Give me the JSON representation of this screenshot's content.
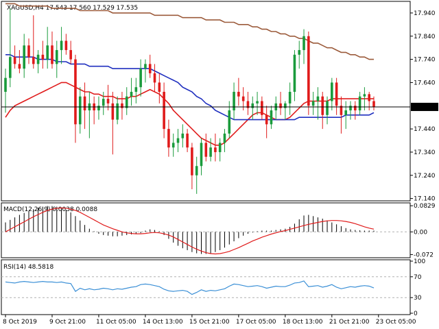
{
  "header": {
    "symbol": "XAGUSD,H4",
    "ohlc": "17.543 17.560 17.529 17.535"
  },
  "price_axis": {
    "ticks": [
      "17.940",
      "17.840",
      "17.740",
      "17.640",
      "17.535",
      "17.440",
      "17.340",
      "17.240",
      "17.140"
    ]
  },
  "current_price": {
    "label": "17.535",
    "value": 17.535
  },
  "macd": {
    "title": "MACD(12,26,9) 0.0038 0.0088",
    "ticks": [
      "0.0829",
      "0.00",
      "-0.072"
    ]
  },
  "rsi": {
    "title": "RSI(14) 48.5818",
    "ticks": [
      "100",
      "70",
      "30",
      "0"
    ]
  },
  "time_axis": {
    "labels": [
      "8 Oct 2019",
      "9 Oct 21:00",
      "11 Oct 05:00",
      "14 Oct 13:00",
      "15 Oct 21:00",
      "17 Oct 05:00",
      "18 Oct 13:00",
      "21 Oct 21:00",
      "23 Oct 05:00"
    ]
  },
  "colors": {
    "bull": "#1a9b3c",
    "bear": "#e01b1b",
    "ma_fast": "#e01b1b",
    "ma_mid": "#1f2fbf",
    "ma_slow": "#9b5a3a",
    "rsi_line": "#3a8fd6",
    "macd_signal": "#e01b1b",
    "macd_hist": "#000000",
    "grid_dash": "#b0b0b0"
  },
  "chart_data": [
    {
      "type": "candlestick",
      "title": "XAGUSD,H4",
      "ylim": [
        17.13,
        17.99
      ],
      "xlabels": [
        "8 Oct 2019",
        "9 Oct 21:00",
        "11 Oct 05:00",
        "14 Oct 13:00",
        "15 Oct 21:00",
        "17 Oct 05:00",
        "18 Oct 13:00",
        "21 Oct 21:00",
        "23 Oct 05:00"
      ],
      "xlabel_index": [
        0,
        10,
        20,
        30,
        40,
        50,
        60,
        70,
        80
      ],
      "candles": [
        [
          17.6,
          17.7,
          17.51,
          17.66
        ],
        [
          17.66,
          17.96,
          17.62,
          17.75
        ],
        [
          17.75,
          17.8,
          17.7,
          17.72
        ],
        [
          17.72,
          17.78,
          17.68,
          17.7
        ],
        [
          17.7,
          17.85,
          17.66,
          17.8
        ],
        [
          17.8,
          17.83,
          17.72,
          17.75
        ],
        [
          17.75,
          17.93,
          17.7,
          17.72
        ],
        [
          17.72,
          17.78,
          17.68,
          17.76
        ],
        [
          17.76,
          17.82,
          17.7,
          17.74
        ],
        [
          17.74,
          17.88,
          17.7,
          17.8
        ],
        [
          17.8,
          17.86,
          17.7,
          17.72
        ],
        [
          17.72,
          17.82,
          17.66,
          17.78
        ],
        [
          17.78,
          17.88,
          17.72,
          17.82
        ],
        [
          17.82,
          17.85,
          17.76,
          17.78
        ],
        [
          17.78,
          17.82,
          17.72,
          17.74
        ],
        [
          17.74,
          17.76,
          17.38,
          17.46
        ],
        [
          17.46,
          17.62,
          17.42,
          17.58
        ],
        [
          17.58,
          17.64,
          17.44,
          17.52
        ],
        [
          17.52,
          17.6,
          17.4,
          17.55
        ],
        [
          17.55,
          17.58,
          17.46,
          17.52
        ],
        [
          17.52,
          17.58,
          17.48,
          17.54
        ],
        [
          17.54,
          17.6,
          17.5,
          17.57
        ],
        [
          17.57,
          17.63,
          17.52,
          17.55
        ],
        [
          17.55,
          17.6,
          17.33,
          17.48
        ],
        [
          17.48,
          17.58,
          17.46,
          17.55
        ],
        [
          17.55,
          17.6,
          17.48,
          17.53
        ],
        [
          17.53,
          17.62,
          17.5,
          17.58
        ],
        [
          17.58,
          17.66,
          17.54,
          17.6
        ],
        [
          17.6,
          17.66,
          17.55,
          17.62
        ],
        [
          17.62,
          17.74,
          17.58,
          17.7
        ],
        [
          17.7,
          17.74,
          17.64,
          17.72
        ],
        [
          17.72,
          17.76,
          17.66,
          17.68
        ],
        [
          17.68,
          17.72,
          17.6,
          17.64
        ],
        [
          17.64,
          17.68,
          17.55,
          17.6
        ],
        [
          17.6,
          17.64,
          17.4,
          17.44
        ],
        [
          17.44,
          17.48,
          17.32,
          17.36
        ],
        [
          17.36,
          17.42,
          17.32,
          17.38
        ],
        [
          17.38,
          17.44,
          17.34,
          17.4
        ],
        [
          17.4,
          17.46,
          17.36,
          17.42
        ],
        [
          17.42,
          17.44,
          17.34,
          17.36
        ],
        [
          17.36,
          17.38,
          17.18,
          17.24
        ],
        [
          17.24,
          17.32,
          17.16,
          17.28
        ],
        [
          17.28,
          17.4,
          17.24,
          17.38
        ],
        [
          17.38,
          17.42,
          17.3,
          17.32
        ],
        [
          17.32,
          17.4,
          17.3,
          17.36
        ],
        [
          17.36,
          17.42,
          17.3,
          17.34
        ],
        [
          17.34,
          17.4,
          17.3,
          17.38
        ],
        [
          17.38,
          17.44,
          17.34,
          17.42
        ],
        [
          17.42,
          17.56,
          17.4,
          17.52
        ],
        [
          17.52,
          17.64,
          17.48,
          17.6
        ],
        [
          17.6,
          17.66,
          17.54,
          17.58
        ],
        [
          17.58,
          17.62,
          17.52,
          17.56
        ],
        [
          17.56,
          17.6,
          17.5,
          17.53
        ],
        [
          17.53,
          17.58,
          17.48,
          17.55
        ],
        [
          17.55,
          17.6,
          17.5,
          17.56
        ],
        [
          17.56,
          17.58,
          17.48,
          17.5
        ],
        [
          17.5,
          17.54,
          17.4,
          17.46
        ],
        [
          17.46,
          17.54,
          17.44,
          17.52
        ],
        [
          17.52,
          17.58,
          17.48,
          17.55
        ],
        [
          17.55,
          17.6,
          17.5,
          17.53
        ],
        [
          17.53,
          17.56,
          17.48,
          17.55
        ],
        [
          17.55,
          17.64,
          17.5,
          17.6
        ],
        [
          17.6,
          17.78,
          17.56,
          17.76
        ],
        [
          17.76,
          17.82,
          17.7,
          17.78
        ],
        [
          17.78,
          17.87,
          17.72,
          17.84
        ],
        [
          17.84,
          17.86,
          17.5,
          17.54
        ],
        [
          17.54,
          17.6,
          17.5,
          17.56
        ],
        [
          17.56,
          17.62,
          17.48,
          17.58
        ],
        [
          17.58,
          17.6,
          17.44,
          17.5
        ],
        [
          17.5,
          17.58,
          17.46,
          17.56
        ],
        [
          17.56,
          17.66,
          17.52,
          17.64
        ],
        [
          17.64,
          17.66,
          17.5,
          17.54
        ],
        [
          17.54,
          17.58,
          17.42,
          17.5
        ],
        [
          17.5,
          17.56,
          17.44,
          17.52
        ],
        [
          17.52,
          17.56,
          17.48,
          17.54
        ],
        [
          17.54,
          17.56,
          17.48,
          17.52
        ],
        [
          17.52,
          17.6,
          17.5,
          17.58
        ],
        [
          17.58,
          17.62,
          17.52,
          17.59
        ],
        [
          17.59,
          17.6,
          17.52,
          17.56
        ],
        [
          17.56,
          17.58,
          17.52,
          17.535
        ]
      ],
      "series": [
        {
          "values": [
            17.49,
            17.52,
            17.54,
            17.55,
            17.56,
            17.57,
            17.58,
            17.59,
            17.6,
            17.61,
            17.62,
            17.63,
            17.64,
            17.64,
            17.63,
            17.62,
            17.61,
            17.6,
            17.6,
            17.59,
            17.59,
            17.58,
            17.58,
            17.58,
            17.57,
            17.57,
            17.57,
            17.58,
            17.58,
            17.59,
            17.6,
            17.61,
            17.6,
            17.59,
            17.57,
            17.55,
            17.52,
            17.5,
            17.48,
            17.46,
            17.44,
            17.42,
            17.4,
            17.39,
            17.38,
            17.37,
            17.37,
            17.38,
            17.4,
            17.42,
            17.44,
            17.46,
            17.48,
            17.5,
            17.51,
            17.51,
            17.5,
            17.49,
            17.48,
            17.48,
            17.48,
            17.49,
            17.51,
            17.53,
            17.55,
            17.56,
            17.56,
            17.56,
            17.56,
            17.56,
            17.57,
            17.57,
            17.57,
            17.57,
            17.57,
            17.57,
            17.57,
            17.57,
            17.57,
            17.57
          ]
        },
        {
          "values": [
            17.76,
            17.76,
            17.75,
            17.75,
            17.75,
            17.75,
            17.75,
            17.74,
            17.74,
            17.74,
            17.74,
            17.73,
            17.73,
            17.73,
            17.72,
            17.72,
            17.72,
            17.72,
            17.71,
            17.71,
            17.71,
            17.71,
            17.71,
            17.7,
            17.7,
            17.7,
            17.7,
            17.7,
            17.7,
            17.7,
            17.7,
            17.7,
            17.69,
            17.68,
            17.67,
            17.66,
            17.65,
            17.64,
            17.62,
            17.61,
            17.6,
            17.58,
            17.57,
            17.55,
            17.54,
            17.52,
            17.51,
            17.5,
            17.49,
            17.48,
            17.48,
            17.48,
            17.48,
            17.48,
            17.48,
            17.48,
            17.48,
            17.48,
            17.48,
            17.48,
            17.48,
            17.48,
            17.48,
            17.49,
            17.49,
            17.49,
            17.49,
            17.49,
            17.49,
            17.49,
            17.49,
            17.49,
            17.49,
            17.5,
            17.5,
            17.5,
            17.5,
            17.5,
            17.5,
            17.51
          ]
        },
        {
          "values": [
            17.98,
            17.98,
            17.98,
            17.97,
            17.97,
            17.97,
            17.97,
            17.97,
            17.97,
            17.97,
            17.96,
            17.96,
            17.96,
            17.96,
            17.96,
            17.96,
            17.95,
            17.95,
            17.95,
            17.95,
            17.95,
            17.95,
            17.95,
            17.94,
            17.94,
            17.94,
            17.94,
            17.94,
            17.94,
            17.94,
            17.94,
            17.94,
            17.93,
            17.93,
            17.93,
            17.93,
            17.93,
            17.93,
            17.92,
            17.92,
            17.92,
            17.92,
            17.92,
            17.91,
            17.91,
            17.91,
            17.91,
            17.9,
            17.9,
            17.9,
            17.89,
            17.89,
            17.89,
            17.88,
            17.88,
            17.87,
            17.87,
            17.86,
            17.86,
            17.85,
            17.85,
            17.84,
            17.84,
            17.83,
            17.83,
            17.82,
            17.81,
            17.81,
            17.8,
            17.79,
            17.79,
            17.78,
            17.77,
            17.77,
            17.76,
            17.76,
            17.75,
            17.75,
            17.74,
            17.74
          ]
        }
      ]
    },
    {
      "type": "bar",
      "title": "MACD(12,26,9) 0.0038 0.0088",
      "ylim": [
        -0.082,
        0.092
      ],
      "values": [
        0.03,
        0.038,
        0.046,
        0.054,
        0.06,
        0.066,
        0.072,
        0.076,
        0.08,
        0.082,
        0.082,
        0.08,
        0.076,
        0.07,
        0.062,
        0.05,
        0.036,
        0.022,
        0.01,
        0.002,
        -0.006,
        -0.01,
        -0.012,
        -0.014,
        -0.014,
        -0.012,
        -0.01,
        -0.008,
        -0.006,
        -0.004,
        0.004,
        0.008,
        0.006,
        0.002,
        -0.01,
        -0.022,
        -0.034,
        -0.044,
        -0.052,
        -0.058,
        -0.064,
        -0.068,
        -0.07,
        -0.07,
        -0.068,
        -0.064,
        -0.058,
        -0.05,
        -0.04,
        -0.03,
        -0.02,
        -0.012,
        -0.006,
        -0.002,
        0.002,
        0.004,
        0.004,
        0.004,
        0.006,
        0.008,
        0.01,
        0.016,
        0.026,
        0.04,
        0.052,
        0.054,
        0.05,
        0.046,
        0.042,
        0.036,
        0.03,
        0.024,
        0.018,
        0.012,
        0.008,
        0.006,
        0.005,
        0.004,
        0.004,
        0.0038
      ],
      "series": [
        {
          "values": [
            0.0,
            0.008,
            0.016,
            0.024,
            0.032,
            0.04,
            0.048,
            0.055,
            0.062,
            0.068,
            0.072,
            0.075,
            0.076,
            0.075,
            0.072,
            0.068,
            0.062,
            0.054,
            0.046,
            0.038,
            0.03,
            0.022,
            0.016,
            0.01,
            0.005,
            0.0,
            -0.003,
            -0.005,
            -0.006,
            -0.006,
            -0.005,
            -0.003,
            -0.002,
            -0.003,
            -0.006,
            -0.01,
            -0.016,
            -0.024,
            -0.032,
            -0.04,
            -0.048,
            -0.055,
            -0.061,
            -0.066,
            -0.069,
            -0.07,
            -0.069,
            -0.066,
            -0.062,
            -0.056,
            -0.05,
            -0.043,
            -0.036,
            -0.029,
            -0.023,
            -0.017,
            -0.012,
            -0.007,
            -0.003,
            0.001,
            0.004,
            0.008,
            0.012,
            0.016,
            0.02,
            0.024,
            0.027,
            0.03,
            0.033,
            0.035,
            0.036,
            0.036,
            0.035,
            0.033,
            0.03,
            0.026,
            0.021,
            0.016,
            0.012,
            0.0088
          ]
        }
      ]
    },
    {
      "type": "line",
      "title": "RSI(14) 48.5818",
      "ylim": [
        0,
        100
      ],
      "levels": [
        30,
        70
      ],
      "series": [
        {
          "values": [
            60,
            59,
            58,
            60,
            61,
            60,
            59,
            60,
            61,
            60,
            60,
            59,
            60,
            58,
            57,
            42,
            48,
            45,
            47,
            45,
            46,
            48,
            47,
            45,
            47,
            46,
            48,
            50,
            51,
            55,
            56,
            55,
            53,
            51,
            46,
            43,
            42,
            43,
            44,
            42,
            36,
            40,
            45,
            42,
            44,
            43,
            45,
            47,
            52,
            56,
            55,
            53,
            51,
            52,
            53,
            51,
            48,
            50,
            52,
            51,
            51,
            54,
            58,
            59,
            62,
            51,
            52,
            53,
            50,
            52,
            55,
            50,
            47,
            49,
            51,
            50,
            52,
            53,
            52,
            48.58
          ]
        }
      ]
    }
  ]
}
